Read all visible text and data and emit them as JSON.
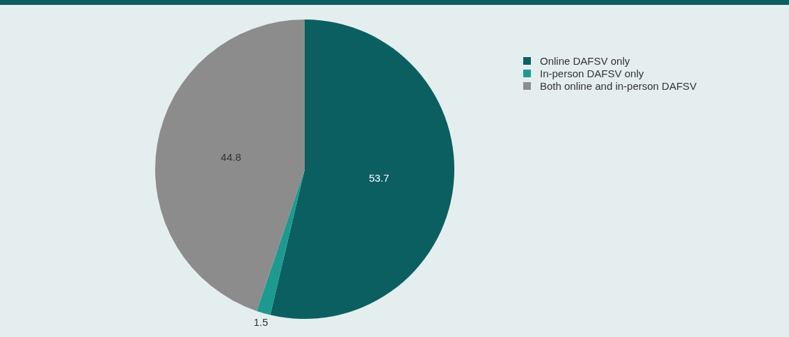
{
  "chart_data": {
    "type": "pie",
    "categories": [
      "Online DAFSV only",
      "In-person DAFSV only",
      "Both online and in-person DAFSV"
    ],
    "values": [
      53.7,
      1.5,
      44.8
    ],
    "colors": [
      "#0b5f61",
      "#1d9a90",
      "#8c8c8c"
    ],
    "data_labels": true,
    "legend": "top right"
  }
}
